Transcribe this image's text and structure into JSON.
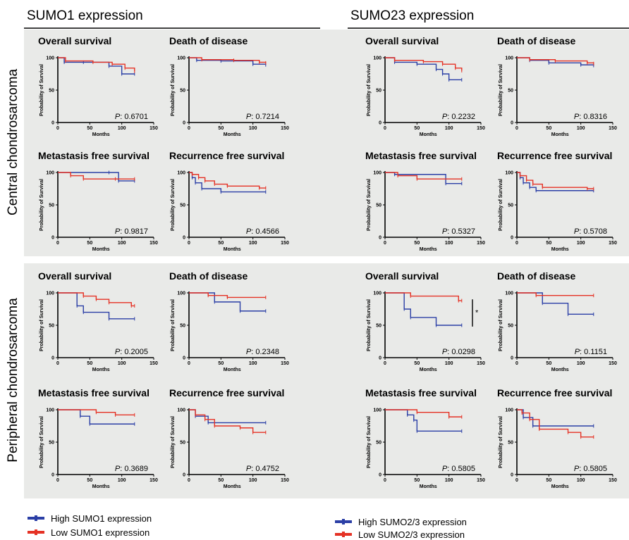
{
  "headers": {
    "sumo1": "SUMO1 expression",
    "sumo23": "SUMO23 expression"
  },
  "row_labels": {
    "central": "Central chondrosarcoma",
    "peripheral": "Peripheral chondrosarcoma"
  },
  "legend": {
    "sumo1_high": "High SUMO1 expression",
    "sumo1_low": "Low SUMO1 expression",
    "sumo23_high": "High SUMO2/3 expression",
    "sumo23_low": "Low SUMO2/3 expression"
  },
  "colors": {
    "high": "#2b3fa6",
    "low": "#e53225",
    "panel_bg": "#e9eae8"
  },
  "significance_marker": "*",
  "chart_data": [
    {
      "type": "line",
      "group": "central",
      "set": "sumo1",
      "title": "Overall survival",
      "p_label": "P",
      "p_value": "0.6701",
      "xlabel": "Months",
      "ylabel": "Probability of Survival",
      "xlim": [
        0,
        150
      ],
      "ylim": [
        0,
        100
      ],
      "xticks": [
        0,
        50,
        100,
        150
      ],
      "yticks": [
        0,
        50,
        100
      ],
      "series": [
        {
          "name": "High SUMO1 expression",
          "x": [
            0,
            10,
            40,
            80,
            100,
            120
          ],
          "y": [
            100,
            93,
            93,
            87,
            75,
            75
          ]
        },
        {
          "name": "Low SUMO1 expression",
          "x": [
            0,
            12,
            55,
            85,
            105,
            120
          ],
          "y": [
            100,
            95,
            93,
            90,
            84,
            79
          ]
        }
      ]
    },
    {
      "type": "line",
      "group": "central",
      "set": "sumo1",
      "title": "Death of disease",
      "p_label": "P",
      "p_value": "0.7214",
      "xlabel": "Months",
      "ylabel": "Probability of Survival",
      "xlim": [
        0,
        150
      ],
      "ylim": [
        0,
        100
      ],
      "xticks": [
        0,
        50,
        100,
        150
      ],
      "yticks": [
        0,
        50,
        100
      ],
      "series": [
        {
          "name": "High SUMO1 expression",
          "x": [
            0,
            12,
            50,
            100,
            120
          ],
          "y": [
            100,
            96,
            95,
            90,
            89
          ]
        },
        {
          "name": "Low SUMO1 expression",
          "x": [
            0,
            20,
            70,
            110,
            120
          ],
          "y": [
            100,
            97,
            96,
            93,
            92
          ]
        }
      ]
    },
    {
      "type": "line",
      "group": "central",
      "set": "sumo23",
      "title": "Overall survival",
      "p_label": "P",
      "p_value": "0.2232",
      "xlabel": "Months",
      "ylabel": "Probability of Survival",
      "xlim": [
        0,
        150
      ],
      "ylim": [
        0,
        100
      ],
      "xticks": [
        0,
        50,
        100,
        150
      ],
      "yticks": [
        0,
        50,
        100
      ],
      "series": [
        {
          "name": "High SUMO2/3 expression",
          "x": [
            0,
            15,
            50,
            80,
            90,
            100,
            120
          ],
          "y": [
            100,
            93,
            90,
            82,
            75,
            66,
            66
          ]
        },
        {
          "name": "Low SUMO2/3 expression",
          "x": [
            0,
            15,
            60,
            90,
            110,
            120
          ],
          "y": [
            100,
            96,
            94,
            90,
            84,
            80
          ]
        }
      ]
    },
    {
      "type": "line",
      "group": "central",
      "set": "sumo23",
      "title": "Death of disease",
      "p_label": "P",
      "p_value": "0.8316",
      "xlabel": "Months",
      "ylabel": "Probability of Survival",
      "xlim": [
        0,
        150
      ],
      "ylim": [
        0,
        100
      ],
      "xticks": [
        0,
        50,
        100,
        150
      ],
      "yticks": [
        0,
        50,
        100
      ],
      "series": [
        {
          "name": "High SUMO2/3 expression",
          "x": [
            0,
            20,
            50,
            100,
            120
          ],
          "y": [
            100,
            96,
            92,
            89,
            88
          ]
        },
        {
          "name": "Low SUMO2/3 expression",
          "x": [
            0,
            20,
            60,
            110,
            120
          ],
          "y": [
            100,
            97,
            95,
            92,
            91
          ]
        }
      ]
    },
    {
      "type": "line",
      "group": "central",
      "set": "sumo1",
      "title": "Metastasis free survival",
      "p_label": "P",
      "p_value": "0.9817",
      "xlabel": "Months",
      "ylabel": "Probability of Survival",
      "xlim": [
        0,
        150
      ],
      "ylim": [
        0,
        100
      ],
      "xticks": [
        0,
        50,
        100,
        150
      ],
      "yticks": [
        0,
        50,
        100
      ],
      "series": [
        {
          "name": "High SUMO1 expression",
          "x": [
            0,
            80,
            95,
            120
          ],
          "y": [
            100,
            100,
            87,
            87
          ]
        },
        {
          "name": "Low SUMO1 expression",
          "x": [
            0,
            20,
            40,
            90,
            120
          ],
          "y": [
            100,
            95,
            90,
            90,
            90
          ]
        }
      ]
    },
    {
      "type": "line",
      "group": "central",
      "set": "sumo1",
      "title": "Recurrence free survival",
      "p_label": "P",
      "p_value": "0.4566",
      "xlabel": "Months",
      "ylabel": "Probability of Survival",
      "xlim": [
        0,
        150
      ],
      "ylim": [
        0,
        100
      ],
      "xticks": [
        0,
        50,
        100,
        150
      ],
      "yticks": [
        0,
        50,
        100
      ],
      "series": [
        {
          "name": "High SUMO1 expression",
          "x": [
            0,
            5,
            10,
            20,
            50,
            120
          ],
          "y": [
            100,
            92,
            84,
            75,
            70,
            70
          ]
        },
        {
          "name": "Low SUMO1 expression",
          "x": [
            0,
            5,
            15,
            25,
            40,
            60,
            110,
            120
          ],
          "y": [
            100,
            97,
            92,
            87,
            82,
            79,
            76,
            76
          ]
        }
      ]
    },
    {
      "type": "line",
      "group": "central",
      "set": "sumo23",
      "title": "Metastasis free survival",
      "p_label": "P",
      "p_value": "0.5327",
      "xlabel": "Months",
      "ylabel": "Probability of Survival",
      "xlim": [
        0,
        150
      ],
      "ylim": [
        0,
        100
      ],
      "xticks": [
        0,
        50,
        100,
        150
      ],
      "yticks": [
        0,
        50,
        100
      ],
      "series": [
        {
          "name": "High SUMO2/3 expression",
          "x": [
            0,
            15,
            95,
            120
          ],
          "y": [
            100,
            97,
            83,
            83
          ]
        },
        {
          "name": "Low SUMO2/3 expression",
          "x": [
            0,
            20,
            50,
            120
          ],
          "y": [
            100,
            95,
            90,
            90
          ]
        }
      ]
    },
    {
      "type": "line",
      "group": "central",
      "set": "sumo23",
      "title": "Recurrence free survival",
      "p_label": "P",
      "p_value": "0.5708",
      "xlabel": "Months",
      "ylabel": "Probability of Survival",
      "xlim": [
        0,
        150
      ],
      "ylim": [
        0,
        100
      ],
      "xticks": [
        0,
        50,
        100,
        150
      ],
      "yticks": [
        0,
        50,
        100
      ],
      "series": [
        {
          "name": "High SUMO2/3 expression",
          "x": [
            0,
            5,
            10,
            20,
            30,
            120
          ],
          "y": [
            100,
            92,
            84,
            77,
            72,
            72
          ]
        },
        {
          "name": "Low SUMO2/3 expression",
          "x": [
            0,
            5,
            15,
            25,
            40,
            110,
            120
          ],
          "y": [
            100,
            95,
            88,
            82,
            77,
            75,
            75
          ]
        }
      ]
    },
    {
      "type": "line",
      "group": "peripheral",
      "set": "sumo1",
      "title": "Overall survival",
      "p_label": "P",
      "p_value": "0.2005",
      "xlabel": "Months",
      "ylabel": "Probability of Survival",
      "xlim": [
        0,
        150
      ],
      "ylim": [
        0,
        100
      ],
      "xticks": [
        0,
        50,
        100,
        150
      ],
      "yticks": [
        0,
        50,
        100
      ],
      "series": [
        {
          "name": "High SUMO1 expression",
          "x": [
            0,
            30,
            40,
            80,
            120
          ],
          "y": [
            100,
            80,
            70,
            60,
            60
          ]
        },
        {
          "name": "Low SUMO1 expression",
          "x": [
            0,
            40,
            60,
            80,
            115,
            120
          ],
          "y": [
            100,
            95,
            90,
            85,
            80,
            80
          ]
        }
      ]
    },
    {
      "type": "line",
      "group": "peripheral",
      "set": "sumo1",
      "title": "Death of disease",
      "p_label": "P",
      "p_value": "0.2348",
      "xlabel": "Months",
      "ylabel": "Probability of Survival",
      "xlim": [
        0,
        150
      ],
      "ylim": [
        0,
        100
      ],
      "xticks": [
        0,
        50,
        100,
        150
      ],
      "yticks": [
        0,
        50,
        100
      ],
      "series": [
        {
          "name": "High SUMO1 expression",
          "x": [
            0,
            40,
            80,
            120
          ],
          "y": [
            100,
            86,
            72,
            72
          ]
        },
        {
          "name": "Low SUMO1 expression",
          "x": [
            0,
            30,
            60,
            120
          ],
          "y": [
            100,
            96,
            93,
            93
          ]
        }
      ]
    },
    {
      "type": "line",
      "group": "peripheral",
      "set": "sumo23",
      "title": "Overall survival",
      "p_label": "P",
      "p_value": "0.0298",
      "xlabel": "Months",
      "ylabel": "Probability of Survival",
      "xlim": [
        0,
        150
      ],
      "ylim": [
        0,
        100
      ],
      "xticks": [
        0,
        50,
        100,
        150
      ],
      "yticks": [
        0,
        50,
        100
      ],
      "series": [
        {
          "name": "High SUMO2/3 expression",
          "x": [
            0,
            30,
            40,
            80,
            120
          ],
          "y": [
            100,
            75,
            62,
            50,
            50
          ]
        },
        {
          "name": "Low SUMO2/3 expression",
          "x": [
            0,
            40,
            115,
            120
          ],
          "y": [
            100,
            95,
            88,
            88
          ]
        }
      ]
    },
    {
      "type": "line",
      "group": "peripheral",
      "set": "sumo23",
      "title": "Death of disease",
      "p_label": "P",
      "p_value": "0.1151",
      "xlabel": "Months",
      "ylabel": "Probability of Survival",
      "xlim": [
        0,
        150
      ],
      "ylim": [
        0,
        100
      ],
      "xticks": [
        0,
        50,
        100,
        150
      ],
      "yticks": [
        0,
        50,
        100
      ],
      "series": [
        {
          "name": "High SUMO2/3 expression",
          "x": [
            0,
            40,
            80,
            120
          ],
          "y": [
            100,
            84,
            67,
            67
          ]
        },
        {
          "name": "Low SUMO2/3 expression",
          "x": [
            0,
            30,
            120
          ],
          "y": [
            100,
            96,
            96
          ]
        }
      ]
    },
    {
      "type": "line",
      "group": "peripheral",
      "set": "sumo1",
      "title": "Metastasis free survival",
      "p_label": "P",
      "p_value": "0.3689",
      "xlabel": "Months",
      "ylabel": "Probability of Survival",
      "xlim": [
        0,
        150
      ],
      "ylim": [
        0,
        100
      ],
      "xticks": [
        0,
        50,
        100,
        150
      ],
      "yticks": [
        0,
        50,
        100
      ],
      "series": [
        {
          "name": "High SUMO1 expression",
          "x": [
            0,
            35,
            50,
            120
          ],
          "y": [
            100,
            90,
            78,
            78
          ]
        },
        {
          "name": "Low SUMO1 expression",
          "x": [
            0,
            60,
            90,
            120
          ],
          "y": [
            100,
            96,
            92,
            92
          ]
        }
      ]
    },
    {
      "type": "line",
      "group": "peripheral",
      "set": "sumo1",
      "title": "Recurrence free survival",
      "p_label": "P",
      "p_value": "0.4752",
      "xlabel": "Months",
      "ylabel": "Probability of Survival",
      "xlim": [
        0,
        150
      ],
      "ylim": [
        0,
        100
      ],
      "xticks": [
        0,
        50,
        100,
        150
      ],
      "yticks": [
        0,
        50,
        100
      ],
      "series": [
        {
          "name": "High SUMO1 expression",
          "x": [
            0,
            10,
            30,
            120
          ],
          "y": [
            100,
            90,
            80,
            80
          ]
        },
        {
          "name": "Low SUMO1 expression",
          "x": [
            0,
            10,
            25,
            40,
            80,
            100,
            120
          ],
          "y": [
            100,
            92,
            85,
            75,
            72,
            65,
            65
          ]
        }
      ]
    },
    {
      "type": "line",
      "group": "peripheral",
      "set": "sumo23",
      "title": "Metastasis free survival",
      "p_label": "P",
      "p_value": "0.5805",
      "xlabel": "Months",
      "ylabel": "Probability of Survival",
      "xlim": [
        0,
        150
      ],
      "ylim": [
        0,
        100
      ],
      "xticks": [
        0,
        50,
        100,
        150
      ],
      "yticks": [
        0,
        50,
        100
      ],
      "series": [
        {
          "name": "High SUMO2/3 expression",
          "x": [
            0,
            35,
            45,
            50,
            120
          ],
          "y": [
            100,
            92,
            84,
            67,
            67
          ]
        },
        {
          "name": "Low SUMO2/3 expression",
          "x": [
            0,
            50,
            100,
            120
          ],
          "y": [
            100,
            96,
            89,
            89
          ]
        }
      ]
    },
    {
      "type": "line",
      "group": "peripheral",
      "set": "sumo23",
      "title": "Recurrence free survival",
      "p_label": "P",
      "p_value": "0.5805",
      "xlabel": "Months",
      "ylabel": "Probability of Survival",
      "xlim": [
        0,
        150
      ],
      "ylim": [
        0,
        100
      ],
      "xticks": [
        0,
        50,
        100,
        150
      ],
      "yticks": [
        0,
        50,
        100
      ],
      "series": [
        {
          "name": "High SUMO2/3 expression",
          "x": [
            0,
            10,
            25,
            120
          ],
          "y": [
            100,
            88,
            75,
            75
          ]
        },
        {
          "name": "Low SUMO2/3 expression",
          "x": [
            0,
            8,
            20,
            35,
            80,
            100,
            120
          ],
          "y": [
            100,
            95,
            85,
            70,
            65,
            58,
            58
          ]
        }
      ]
    }
  ]
}
